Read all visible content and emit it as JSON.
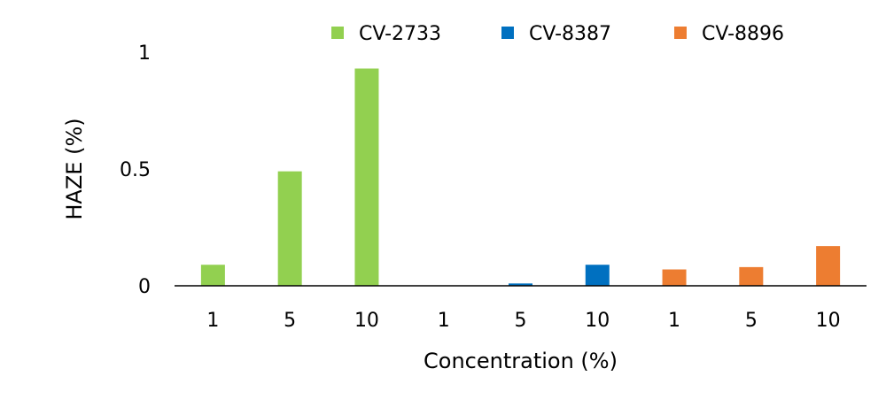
{
  "chart_data": {
    "type": "bar",
    "title": "",
    "xlabel": "Concentration (%)",
    "ylabel": "HAZE (%)",
    "ylim": [
      0,
      1
    ],
    "yticks": [
      "0",
      "0.5",
      "1"
    ],
    "grid": false,
    "legend_position": "top",
    "categories": [
      "1",
      "5",
      "10",
      "1",
      "5",
      "10",
      "1",
      "5",
      "10"
    ],
    "series": [
      {
        "name": "CV-2733",
        "color": "#92d050",
        "values": [
          0.09,
          0.49,
          0.93,
          null,
          null,
          null,
          null,
          null,
          null
        ]
      },
      {
        "name": "CV-8387",
        "color": "#0070c0",
        "values": [
          null,
          null,
          null,
          0.0,
          0.01,
          0.09,
          null,
          null,
          null
        ]
      },
      {
        "name": "CV-8896",
        "color": "#ed7d31",
        "values": [
          null,
          null,
          null,
          null,
          null,
          null,
          0.07,
          0.08,
          0.17
        ]
      }
    ]
  }
}
